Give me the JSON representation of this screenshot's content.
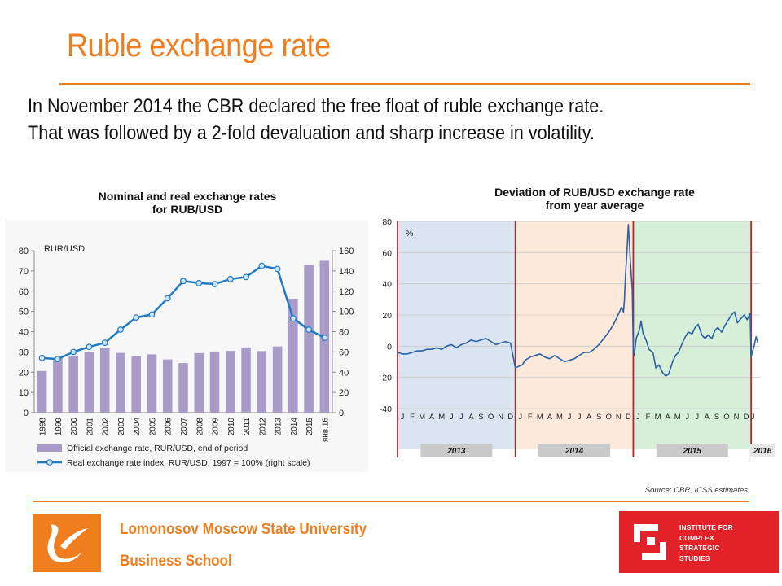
{
  "slide": {
    "title": "Ruble exchange rate",
    "intro_line1": "In November 2014 the CBR declared the free float of ruble exchange rate.",
    "intro_line2": "That was followed by a 2-fold devaluation and sharp increase in volatility.",
    "source": "Source: CBR, ICSS estimates",
    "accent_color": "#f07d1e"
  },
  "footer": {
    "university": "Lomonosov Moscow State University",
    "school": "Business School",
    "institute": "INSTITUTE FOR\nCOMPLEX\nSTRATEGIC\nSTUDIES",
    "institute_color": "#e22128"
  },
  "chart_data": [
    {
      "type": "bar",
      "title_line1": "Nominal and real exchange rates",
      "title_line2": "for RUB/USD",
      "axis_label_left": "RUR/USD",
      "categories": [
        "1998",
        "1999",
        "2000",
        "2001",
        "2002",
        "2003",
        "2004",
        "2005",
        "2006",
        "2007",
        "2008",
        "2009",
        "2010",
        "2011",
        "2012",
        "2013",
        "2014",
        "2015",
        "янв.16"
      ],
      "ylim_left": [
        0,
        80
      ],
      "yticks_left": [
        0,
        10,
        20,
        30,
        40,
        50,
        60,
        70,
        80
      ],
      "ylim_right": [
        0,
        160
      ],
      "yticks_right": [
        0,
        20,
        40,
        60,
        80,
        100,
        120,
        140,
        160
      ],
      "grid": false,
      "legend_position": "bottom",
      "series": [
        {
          "name": "Official exchange rate, RUR/USD, end of period",
          "kind": "bar",
          "axis": "left",
          "color": "#a89bc8",
          "values": [
            20.6,
            27.0,
            28.2,
            30.1,
            31.8,
            29.5,
            27.8,
            28.8,
            26.3,
            24.5,
            29.4,
            30.2,
            30.5,
            32.2,
            30.4,
            32.7,
            56.3,
            72.9,
            75.0
          ]
        },
        {
          "name": "Real exchange rate index, RUR/USD, 1997 = 100% (right scale)",
          "kind": "line",
          "axis": "right",
          "color": "#1f7ac6",
          "values": [
            54,
            53,
            60,
            65,
            69,
            82,
            94,
            97,
            113,
            130,
            128,
            127,
            132,
            134,
            145,
            142,
            93,
            82,
            74
          ]
        }
      ]
    },
    {
      "type": "line",
      "title_line1": "Deviation of RUB/USD exchange rate",
      "title_line2": "from year average",
      "ylabel": "%",
      "ylim": [
        -40,
        80
      ],
      "yticks": [
        -40,
        -20,
        0,
        20,
        40,
        60,
        80
      ],
      "month_labels": [
        "J",
        "F",
        "M",
        "A",
        "M",
        "J",
        "J",
        "A",
        "S",
        "O",
        "N",
        "D",
        "J",
        "F",
        "M",
        "A",
        "M",
        "J",
        "J",
        "A",
        "S",
        "O",
        "N",
        "D",
        "J",
        "F",
        "M",
        "A",
        "M",
        "J",
        "J",
        "A",
        "S",
        "O",
        "N",
        "D",
        "J"
      ],
      "years": [
        {
          "label": "2013",
          "color": "#dbe5f1"
        },
        {
          "label": "2014",
          "color": "#fde9d9"
        },
        {
          "label": "2015",
          "color": "#d7eed9"
        },
        {
          "label": "2016",
          "color": "#ffffff"
        }
      ],
      "grid": true,
      "series_color": "#2a62a8",
      "series": {
        "x_months": [
          0,
          0.5,
          1,
          1.5,
          2,
          2.5,
          3,
          3.5,
          4,
          4.5,
          5,
          5.5,
          6,
          6.5,
          7,
          7.5,
          8,
          8.5,
          9,
          9.5,
          10,
          10.5,
          11,
          11.5,
          12,
          12.3,
          12.7,
          13,
          13.5,
          14,
          14.5,
          15,
          15.5,
          16,
          16.5,
          17,
          17.5,
          18,
          18.5,
          19,
          19.5,
          20,
          20.5,
          21,
          21.5,
          22,
          22.3,
          22.6,
          22.8,
          23.0,
          23.1,
          23.2,
          23.35,
          23.5,
          23.7,
          23.9,
          24.0,
          24.1,
          24.3,
          24.6,
          24.8,
          25.0,
          25.3,
          25.6,
          26.0,
          26.3,
          26.6,
          27.0,
          27.3,
          27.6,
          28.0,
          28.3,
          28.6,
          29.0,
          29.3,
          29.6,
          30.0,
          30.3,
          30.6,
          31.0,
          31.3,
          31.6,
          32.0,
          32.3,
          32.6,
          33.0,
          33.3,
          33.6,
          34.0,
          34.3,
          34.6,
          35.0,
          35.3,
          35.6,
          35.9,
          36.0,
          36.1,
          36.3,
          36.5,
          36.7
        ],
        "values": [
          -4,
          -5,
          -5,
          -4,
          -3,
          -3,
          -2,
          -2,
          -1,
          -2,
          0,
          1,
          -1,
          1,
          2,
          4,
          3,
          4,
          5,
          3,
          1,
          2,
          3,
          2,
          -14,
          -13,
          -12,
          -9,
          -7,
          -6,
          -5,
          -7,
          -8,
          -6,
          -8,
          -10,
          -9,
          -8,
          -6,
          -4,
          -4,
          -2,
          1,
          5,
          9,
          14,
          18,
          22,
          25,
          22,
          30,
          45,
          60,
          78,
          55,
          36,
          -2,
          -6,
          5,
          10,
          16,
          8,
          4,
          -2,
          -4,
          -14,
          -12,
          -17,
          -19,
          -18,
          -10,
          -6,
          -4,
          2,
          6,
          9,
          8,
          12,
          14,
          7,
          5,
          7,
          5,
          10,
          12,
          9,
          13,
          16,
          20,
          22,
          15,
          18,
          20,
          17,
          21,
          -7,
          -4,
          0,
          6,
          2
        ]
      }
    }
  ]
}
